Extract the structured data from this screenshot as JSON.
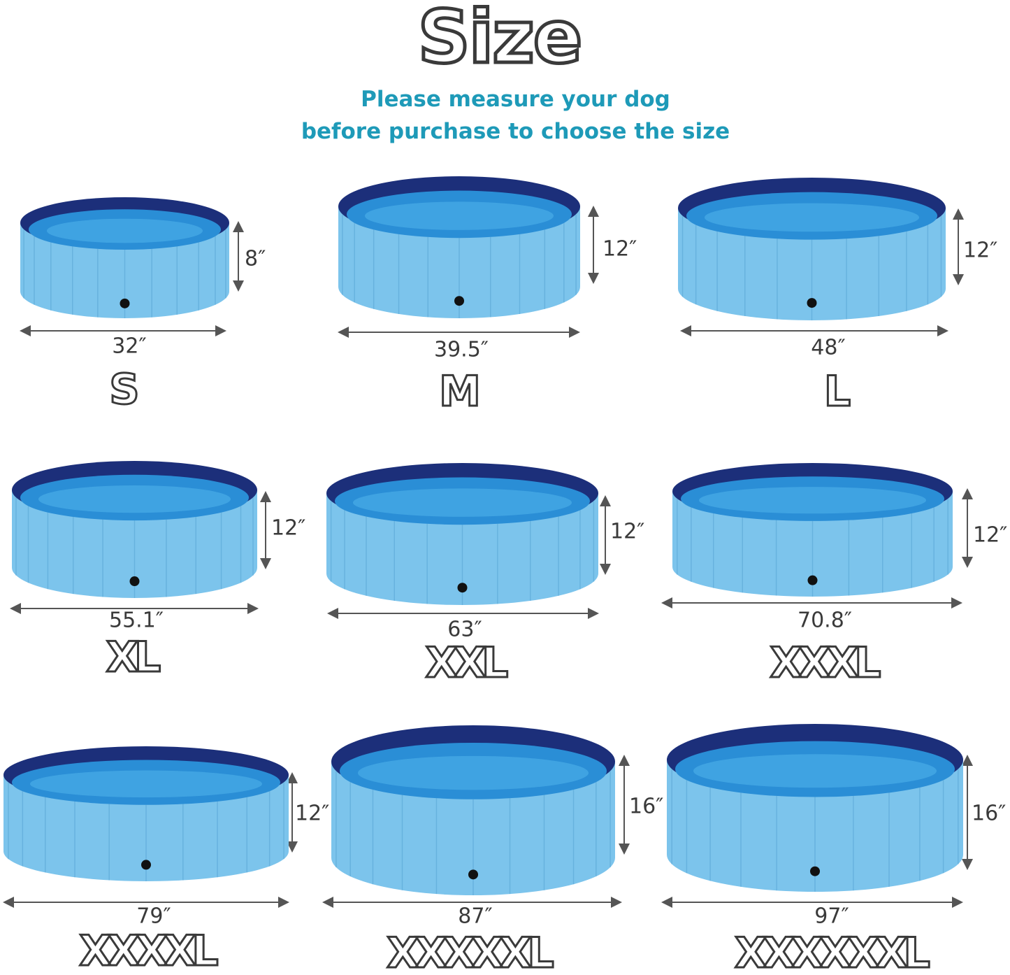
{
  "title": "Size",
  "subtitle": [
    "Please measure your dog",
    "before purchase to choose the size"
  ],
  "colors": {
    "subtitle": "#1e9ab8",
    "pool_wall": "#7cc4ec",
    "pool_rim": "#1c2f7a",
    "water": "#2a8ed6",
    "text": "#3a3a3a"
  },
  "sizes": [
    {
      "label": "S",
      "diameter": "32″",
      "height": "8″"
    },
    {
      "label": "M",
      "diameter": "39.5″",
      "height": "12″"
    },
    {
      "label": "L",
      "diameter": "48″",
      "height": "12″"
    },
    {
      "label": "XL",
      "diameter": "55.1″",
      "height": "12″"
    },
    {
      "label": "XXL",
      "diameter": "63″",
      "height": "12″"
    },
    {
      "label": "XXXL",
      "diameter": "70.8″",
      "height": "12″"
    },
    {
      "label": "XXXXL",
      "diameter": "79″",
      "height": "12″"
    },
    {
      "label": "XXXXXL",
      "diameter": "87″",
      "height": "16″"
    },
    {
      "label": "XXXXXXL",
      "diameter": "97″",
      "height": "16″"
    }
  ]
}
